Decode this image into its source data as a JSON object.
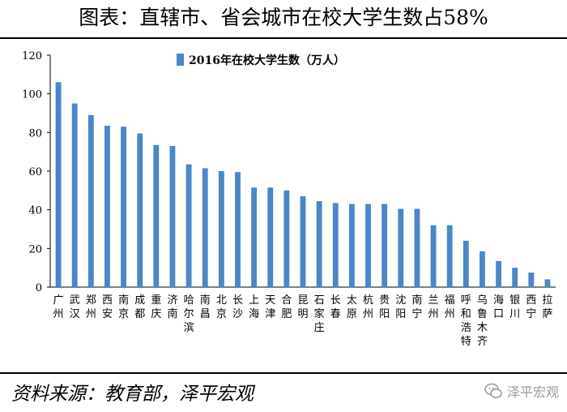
{
  "title": "图表：直辖市、省会城市在校大学生数占58%",
  "source": "资料来源：教育部，泽平宏观",
  "watermark": "泽平宏观",
  "chart_data": {
    "type": "bar",
    "title": "",
    "xlabel": "",
    "ylabel": "",
    "ylim": [
      0,
      120
    ],
    "yticks": [
      0,
      20,
      40,
      60,
      80,
      100,
      120
    ],
    "grid": false,
    "legend_position": "top-center",
    "bar_color": "#4a86c8",
    "categories": [
      "广州",
      "武汉",
      "郑州",
      "西安",
      "南京",
      "成都",
      "重庆",
      "济南",
      "哈尔滨",
      "南昌",
      "北京",
      "长沙",
      "上海",
      "天津",
      "合肥",
      "昆明",
      "石家庄",
      "长春",
      "太原",
      "杭州",
      "贵阳",
      "沈阳",
      "南宁",
      "兰州",
      "福州",
      "呼和浩特",
      "乌鲁木齐",
      "海口",
      "银川",
      "西宁",
      "拉萨"
    ],
    "series": [
      {
        "name": "2016年在校大学生数（万人）",
        "values": [
          106,
          95,
          89,
          83.5,
          83,
          79.5,
          73.5,
          73,
          63.5,
          61.5,
          60,
          59.5,
          51.5,
          51.5,
          50,
          47,
          44.5,
          43.5,
          43,
          43,
          43,
          40.5,
          40.5,
          32,
          32,
          24,
          18.5,
          13.5,
          10,
          7.5,
          4
        ]
      }
    ]
  }
}
